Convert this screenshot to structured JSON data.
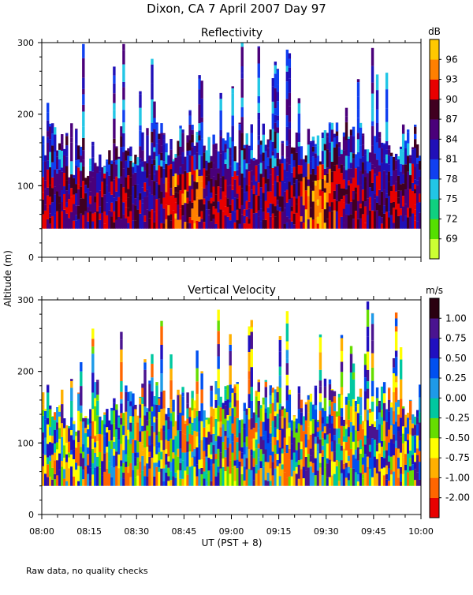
{
  "header": {
    "title": "Dixon, CA   7 April 2007   Day   97"
  },
  "footer": {
    "note": "Raw data, no quality checks"
  },
  "chart_data": [
    {
      "type": "heatmap",
      "title": "Reflectivity",
      "ylabel": "Altitude (m)",
      "xlabel": "UT  (PST + 8)",
      "x_tick_labels": [
        "08:00",
        "08:15",
        "08:30",
        "08:45",
        "09:00",
        "09:15",
        "09:30",
        "09:45",
        "10:00"
      ],
      "xlim": [
        "08:00",
        "10:00"
      ],
      "y_ticks": [
        0,
        100,
        200,
        300
      ],
      "ylim": [
        0,
        300
      ],
      "colorbar": {
        "unit": "dB",
        "labels": [
          "96",
          "93",
          "90",
          "87",
          "84",
          "81",
          "78",
          "75",
          "72",
          "69"
        ],
        "range": [
          67.5,
          97.5
        ],
        "colors": [
          "#ccff33",
          "#55e000",
          "#10d080",
          "#22c6e6",
          "#1040f0",
          "#2010b8",
          "#4a007a",
          "#400020",
          "#e80000",
          "#ff8000",
          "#ffc800"
        ]
      },
      "data_altitude_range_m": [
        40,
        300
      ],
      "notes": "Echo mostly fills 40-180 m; strongest returns (87-96 dB) near 60-120 m around 08:45 and 09:25; sparse returns up to 300 m."
    },
    {
      "type": "heatmap",
      "title": "Vertical Velocity",
      "ylabel": "Altitude (m)",
      "xlabel": "UT  (PST + 8)",
      "x_tick_labels": [
        "08:00",
        "08:15",
        "08:30",
        "08:45",
        "09:00",
        "09:15",
        "09:30",
        "09:45",
        "10:00"
      ],
      "xlim": [
        "08:00",
        "10:00"
      ],
      "y_ticks": [
        0,
        100,
        200,
        300
      ],
      "ylim": [
        0,
        300
      ],
      "colorbar": {
        "unit": "m/s",
        "labels": [
          "1.00",
          "0.75",
          "0.50",
          "0.25",
          "0.00",
          "-0.25",
          "-0.50",
          "-0.75",
          "-1.00",
          "-2.00"
        ],
        "colors": [
          "#e80000",
          "#ff6600",
          "#ffb000",
          "#ffff00",
          "#66dd00",
          "#00c8a0",
          "#1e9ae8",
          "#0050f0",
          "#2010c0",
          "#4a1490",
          "#2a0010"
        ]
      },
      "data_altitude_range_m": [
        40,
        300
      ],
      "notes": "Mixed updrafts and downdrafts between roughly -1 and +1 m/s throughout 40-200 m."
    }
  ]
}
